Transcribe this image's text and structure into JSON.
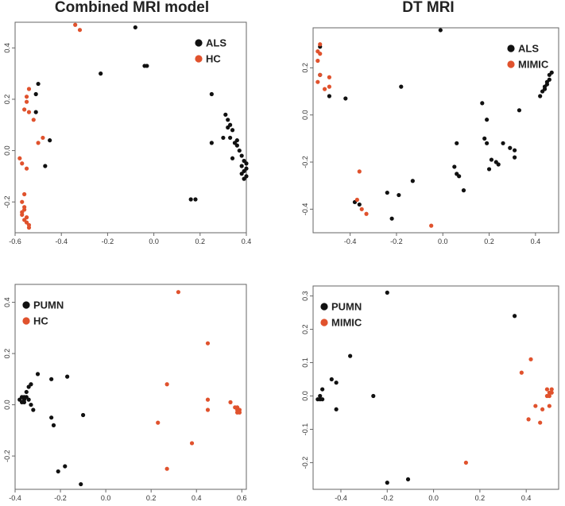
{
  "colors": {
    "black_group": "#111111",
    "orange_group": "#e0522d"
  },
  "chart_data": [
    {
      "type": "scatter",
      "title": "Combined MRI model",
      "xlim": [
        -0.6,
        0.4
      ],
      "ylim": [
        -0.32,
        0.5
      ],
      "xticks": [
        -0.6,
        -0.4,
        -0.2,
        0.0,
        0.2,
        0.4
      ],
      "xtick_labels": [
        "-0.6",
        "-0.4",
        "-0.2",
        "0.0",
        "0.2",
        "0.4"
      ],
      "yticks": [
        -0.2,
        0.0,
        0.2,
        0.4
      ],
      "ytick_labels": [
        "-0.2",
        "0.0",
        "0.2",
        "0.4"
      ],
      "legend_position": "top-right",
      "series": [
        {
          "name": "ALS",
          "color": "#111111",
          "points": [
            [
              -0.08,
              0.48
            ],
            [
              -0.04,
              0.33
            ],
            [
              -0.03,
              0.33
            ],
            [
              -0.23,
              0.3
            ],
            [
              -0.5,
              0.26
            ],
            [
              -0.51,
              0.22
            ],
            [
              -0.51,
              0.15
            ],
            [
              -0.45,
              0.04
            ],
            [
              -0.47,
              -0.06
            ],
            [
              0.25,
              0.22
            ],
            [
              0.25,
              0.03
            ],
            [
              0.16,
              -0.19
            ],
            [
              0.18,
              -0.19
            ],
            [
              0.31,
              0.14
            ],
            [
              0.32,
              0.12
            ],
            [
              0.33,
              0.1
            ],
            [
              0.34,
              0.08
            ],
            [
              0.33,
              0.05
            ],
            [
              0.35,
              0.03
            ],
            [
              0.36,
              0.02
            ],
            [
              0.37,
              0.0
            ],
            [
              0.38,
              -0.02
            ],
            [
              0.39,
              -0.04
            ],
            [
              0.38,
              -0.06
            ],
            [
              0.4,
              -0.05
            ],
            [
              0.39,
              -0.08
            ],
            [
              0.4,
              -0.1
            ],
            [
              0.38,
              -0.09
            ],
            [
              0.34,
              -0.03
            ],
            [
              0.36,
              0.04
            ],
            [
              0.32,
              0.09
            ],
            [
              0.3,
              0.05
            ],
            [
              0.39,
              -0.11
            ],
            [
              0.4,
              -0.07
            ]
          ]
        },
        {
          "name": "HC",
          "color": "#e0522d",
          "points": [
            [
              -0.34,
              0.49
            ],
            [
              -0.32,
              0.47
            ],
            [
              -0.54,
              0.24
            ],
            [
              -0.55,
              0.21
            ],
            [
              -0.55,
              0.19
            ],
            [
              -0.56,
              0.16
            ],
            [
              -0.54,
              0.15
            ],
            [
              -0.52,
              0.12
            ],
            [
              -0.5,
              0.03
            ],
            [
              -0.48,
              0.05
            ],
            [
              -0.58,
              -0.03
            ],
            [
              -0.57,
              -0.05
            ],
            [
              -0.55,
              -0.07
            ],
            [
              -0.56,
              -0.17
            ],
            [
              -0.57,
              -0.2
            ],
            [
              -0.56,
              -0.22
            ],
            [
              -0.57,
              -0.24
            ],
            [
              -0.56,
              -0.27
            ],
            [
              -0.55,
              -0.28
            ],
            [
              -0.54,
              -0.29
            ],
            [
              -0.57,
              -0.25
            ],
            [
              -0.55,
              -0.26
            ],
            [
              -0.56,
              -0.23
            ],
            [
              -0.54,
              -0.3
            ]
          ]
        }
      ]
    },
    {
      "type": "scatter",
      "title": "DT MRI",
      "xlim": [
        -0.56,
        0.5
      ],
      "ylim": [
        -0.5,
        0.37
      ],
      "xticks": [
        -0.4,
        -0.2,
        0.0,
        0.2,
        0.4
      ],
      "xtick_labels": [
        "-0.4",
        "-0.2",
        "0.0",
        "0.2",
        "0.4"
      ],
      "yticks": [
        -0.4,
        -0.2,
        0.0,
        0.2
      ],
      "ytick_labels": [
        "-0.4",
        "-0.2",
        "0.0",
        "0.2"
      ],
      "legend_position": "top-right",
      "series": [
        {
          "name": "ALS",
          "color": "#111111",
          "points": [
            [
              -0.01,
              0.36
            ],
            [
              -0.53,
              0.29
            ],
            [
              -0.53,
              0.17
            ],
            [
              -0.49,
              0.08
            ],
            [
              -0.42,
              0.07
            ],
            [
              -0.18,
              0.12
            ],
            [
              -0.38,
              -0.37
            ],
            [
              -0.36,
              -0.38
            ],
            [
              -0.24,
              -0.33
            ],
            [
              -0.22,
              -0.44
            ],
            [
              -0.19,
              -0.34
            ],
            [
              -0.13,
              -0.28
            ],
            [
              0.05,
              -0.22
            ],
            [
              0.06,
              -0.25
            ],
            [
              0.07,
              -0.26
            ],
            [
              0.09,
              -0.32
            ],
            [
              0.06,
              -0.12
            ],
            [
              0.17,
              0.05
            ],
            [
              0.19,
              -0.02
            ],
            [
              0.18,
              -0.1
            ],
            [
              0.19,
              -0.12
            ],
            [
              0.2,
              -0.23
            ],
            [
              0.21,
              -0.19
            ],
            [
              0.23,
              -0.2
            ],
            [
              0.24,
              -0.21
            ],
            [
              0.26,
              -0.12
            ],
            [
              0.29,
              -0.14
            ],
            [
              0.31,
              -0.15
            ],
            [
              0.31,
              -0.18
            ],
            [
              0.33,
              0.02
            ],
            [
              0.42,
              0.08
            ],
            [
              0.43,
              0.1
            ],
            [
              0.44,
              0.12
            ],
            [
              0.45,
              0.13
            ],
            [
              0.46,
              0.15
            ],
            [
              0.46,
              0.17
            ],
            [
              0.47,
              0.18
            ],
            [
              0.45,
              0.14
            ],
            [
              0.44,
              0.11
            ]
          ]
        },
        {
          "name": "MIMIC",
          "color": "#e0522d",
          "points": [
            [
              -0.53,
              0.3
            ],
            [
              -0.54,
              0.27
            ],
            [
              -0.53,
              0.26
            ],
            [
              -0.54,
              0.23
            ],
            [
              -0.53,
              0.17
            ],
            [
              -0.54,
              0.14
            ],
            [
              -0.51,
              0.11
            ],
            [
              -0.49,
              0.16
            ],
            [
              -0.49,
              0.12
            ],
            [
              -0.36,
              -0.24
            ],
            [
              -0.37,
              -0.36
            ],
            [
              -0.35,
              -0.4
            ],
            [
              -0.33,
              -0.42
            ],
            [
              -0.05,
              -0.47
            ]
          ]
        }
      ]
    },
    {
      "type": "scatter",
      "title": "",
      "xlim": [
        -0.4,
        0.62
      ],
      "ylim": [
        -0.33,
        0.47
      ],
      "xticks": [
        -0.4,
        -0.2,
        0.0,
        0.2,
        0.4,
        0.6
      ],
      "xtick_labels": [
        "-0.4",
        "-0.2",
        "0.0",
        "0.2",
        "0.4",
        "0.6"
      ],
      "yticks": [
        -0.2,
        0.0,
        0.2,
        0.4
      ],
      "ytick_labels": [
        "-0.2",
        "0.0",
        "0.2",
        "0.4"
      ],
      "legend_position": "top-left",
      "series": [
        {
          "name": "PUMN",
          "color": "#111111",
          "points": [
            [
              -0.38,
              0.02
            ],
            [
              -0.37,
              0.03
            ],
            [
              -0.36,
              0.01
            ],
            [
              -0.35,
              0.03
            ],
            [
              -0.34,
              0.02
            ],
            [
              -0.33,
              0.0
            ],
            [
              -0.37,
              0.01
            ],
            [
              -0.36,
              0.03
            ],
            [
              -0.34,
              0.07
            ],
            [
              -0.33,
              0.08
            ],
            [
              -0.3,
              0.12
            ],
            [
              -0.24,
              0.1
            ],
            [
              -0.17,
              0.11
            ],
            [
              -0.32,
              -0.02
            ],
            [
              -0.24,
              -0.05
            ],
            [
              -0.23,
              -0.08
            ],
            [
              -0.1,
              -0.04
            ],
            [
              -0.21,
              -0.26
            ],
            [
              -0.18,
              -0.24
            ],
            [
              -0.11,
              -0.31
            ],
            [
              -0.35,
              0.05
            ],
            [
              -0.36,
              0.02
            ]
          ]
        },
        {
          "name": "HC",
          "color": "#e0522d",
          "points": [
            [
              0.32,
              0.44
            ],
            [
              0.45,
              0.24
            ],
            [
              0.27,
              0.08
            ],
            [
              0.45,
              0.02
            ],
            [
              0.45,
              -0.02
            ],
            [
              0.23,
              -0.07
            ],
            [
              0.38,
              -0.15
            ],
            [
              0.27,
              -0.25
            ],
            [
              0.55,
              0.01
            ],
            [
              0.57,
              -0.01
            ],
            [
              0.58,
              -0.02
            ],
            [
              0.58,
              -0.03
            ],
            [
              0.59,
              -0.02
            ],
            [
              0.59,
              -0.03
            ],
            [
              0.58,
              -0.01
            ]
          ]
        }
      ]
    },
    {
      "type": "scatter",
      "title": "",
      "xlim": [
        -0.52,
        0.54
      ],
      "ylim": [
        -0.28,
        0.33
      ],
      "xticks": [
        -0.4,
        -0.2,
        0.0,
        0.2,
        0.4
      ],
      "xtick_labels": [
        "-0.4",
        "-0.2",
        "0.0",
        "0.2",
        "0.4"
      ],
      "yticks": [
        -0.2,
        -0.1,
        0.0,
        0.1,
        0.2,
        0.3
      ],
      "ytick_labels": [
        "-0.2",
        "-0.1",
        "0.0",
        "0.1",
        "0.2",
        "0.3"
      ],
      "legend_position": "top-left",
      "series": [
        {
          "name": "PUMN",
          "color": "#111111",
          "points": [
            [
              -0.2,
              0.31
            ],
            [
              0.35,
              0.24
            ],
            [
              -0.36,
              0.12
            ],
            [
              -0.44,
              0.05
            ],
            [
              -0.42,
              0.04
            ],
            [
              -0.48,
              0.02
            ],
            [
              -0.49,
              0.0
            ],
            [
              -0.49,
              -0.01
            ],
            [
              -0.48,
              -0.01
            ],
            [
              -0.5,
              -0.01
            ],
            [
              -0.42,
              -0.04
            ],
            [
              -0.26,
              0.0
            ],
            [
              -0.2,
              -0.26
            ],
            [
              -0.11,
              -0.25
            ]
          ]
        },
        {
          "name": "MIMIC",
          "color": "#e0522d",
          "points": [
            [
              0.42,
              0.11
            ],
            [
              0.38,
              0.07
            ],
            [
              0.49,
              0.02
            ],
            [
              0.5,
              0.01
            ],
            [
              0.51,
              0.01
            ],
            [
              0.5,
              0.0
            ],
            [
              0.51,
              0.02
            ],
            [
              0.49,
              0.0
            ],
            [
              0.44,
              -0.03
            ],
            [
              0.47,
              -0.04
            ],
            [
              0.5,
              -0.03
            ],
            [
              0.41,
              -0.07
            ],
            [
              0.46,
              -0.08
            ],
            [
              0.14,
              -0.2
            ]
          ]
        }
      ]
    }
  ]
}
